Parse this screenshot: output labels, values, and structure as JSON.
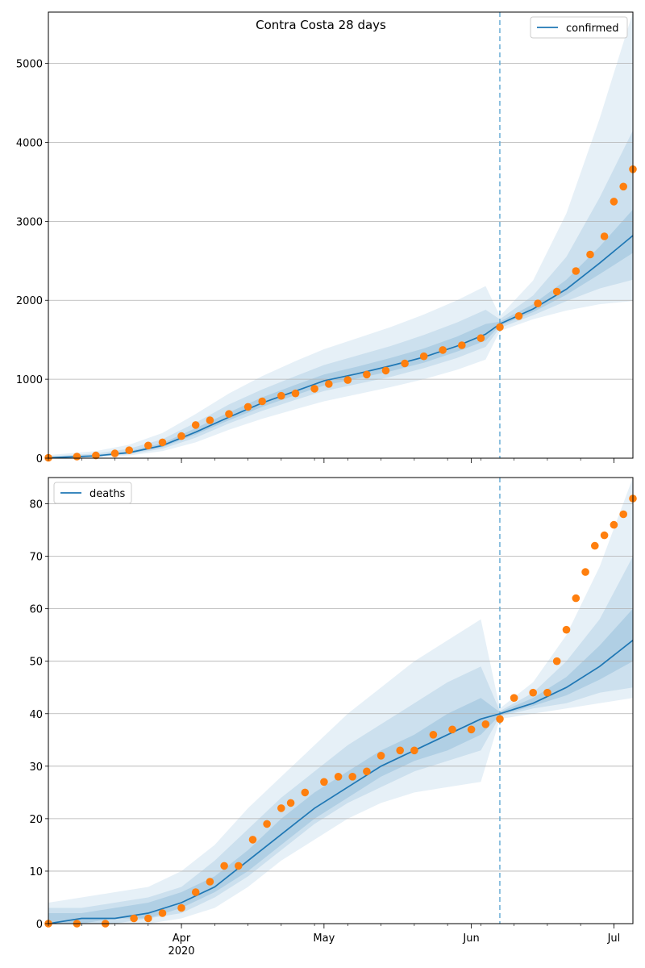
{
  "figure": {
    "title": "Contra Costa 28 days"
  },
  "x_axis": {
    "ticks": [
      {
        "date": "2020-04-01",
        "label": "Apr",
        "sublabel": "2020"
      },
      {
        "date": "2020-05-01",
        "label": "May",
        "sublabel": ""
      },
      {
        "date": "2020-06-01",
        "label": "Jun",
        "sublabel": ""
      },
      {
        "date": "2020-07-01",
        "label": "Jul",
        "sublabel": ""
      }
    ],
    "range": [
      "2020-03-04",
      "2020-07-05"
    ],
    "forecast_start": "2020-06-07"
  },
  "colors": {
    "model_line": "#1f77b4",
    "band": "#1f77b4",
    "observed": "#ff7f0e",
    "forecast_line": "#6baed6",
    "grid": "#b0b0b0"
  },
  "chart_data": [
    {
      "type": "line",
      "title": "Contra Costa 28 days",
      "legend": {
        "label": "confirmed",
        "placement": "top-right"
      },
      "ylim": [
        0,
        5650
      ],
      "yticks": [
        0,
        1000,
        2000,
        3000,
        4000,
        5000
      ],
      "grid": "horizontal",
      "model": {
        "x": [
          "2020-03-04",
          "2020-03-14",
          "2020-03-21",
          "2020-03-28",
          "2020-04-04",
          "2020-04-11",
          "2020-04-18",
          "2020-04-25",
          "2020-05-01",
          "2020-05-08",
          "2020-05-15",
          "2020-05-22",
          "2020-05-29",
          "2020-06-04",
          "2020-06-07",
          "2020-06-14",
          "2020-06-21",
          "2020-06-28",
          "2020-07-05"
        ],
        "y": [
          5,
          30,
          70,
          160,
          330,
          520,
          700,
          850,
          980,
          1070,
          1170,
          1280,
          1420,
          1570,
          1700,
          1890,
          2140,
          2470,
          2820
        ]
      },
      "bands": [
        {
          "lower": [
            0,
            10,
            35,
            90,
            200,
            360,
            500,
            620,
            720,
            810,
            900,
            1000,
            1120,
            1250,
            1610,
            1760,
            1870,
            1950,
            1990
          ],
          "upper": [
            40,
            90,
            170,
            320,
            560,
            820,
            1040,
            1230,
            1380,
            1520,
            1660,
            1820,
            2000,
            2180,
            1800,
            2250,
            3100,
            4300,
            5650
          ]
        },
        {
          "lower": [
            2,
            18,
            50,
            120,
            260,
            440,
            600,
            740,
            850,
            940,
            1030,
            1140,
            1270,
            1410,
            1650,
            1810,
            1990,
            2150,
            2260
          ],
          "upper": [
            20,
            60,
            120,
            240,
            450,
            680,
            870,
            1040,
            1180,
            1300,
            1420,
            1560,
            1720,
            1880,
            1760,
            2060,
            2550,
            3300,
            4150
          ]
        },
        {
          "lower": [
            3,
            24,
            60,
            140,
            300,
            480,
            650,
            800,
            920,
            1010,
            1100,
            1210,
            1350,
            1490,
            1680,
            1850,
            2070,
            2330,
            2600
          ],
          "upper": [
            12,
            40,
            90,
            190,
            380,
            580,
            770,
            930,
            1060,
            1160,
            1270,
            1390,
            1540,
            1700,
            1730,
            1950,
            2260,
            2680,
            3150
          ]
        }
      ],
      "observed": {
        "x": [
          "2020-03-04",
          "2020-03-10",
          "2020-03-14",
          "2020-03-18",
          "2020-03-21",
          "2020-03-25",
          "2020-03-28",
          "2020-04-01",
          "2020-04-04",
          "2020-04-07",
          "2020-04-11",
          "2020-04-15",
          "2020-04-18",
          "2020-04-22",
          "2020-04-25",
          "2020-04-29",
          "2020-05-02",
          "2020-05-06",
          "2020-05-10",
          "2020-05-14",
          "2020-05-18",
          "2020-05-22",
          "2020-05-26",
          "2020-05-30",
          "2020-06-03",
          "2020-06-07",
          "2020-06-11",
          "2020-06-15",
          "2020-06-19",
          "2020-06-23",
          "2020-06-26",
          "2020-06-29",
          "2020-07-01",
          "2020-07-03",
          "2020-07-05"
        ],
        "y": [
          5,
          20,
          35,
          60,
          100,
          160,
          200,
          280,
          420,
          480,
          560,
          650,
          720,
          790,
          820,
          880,
          940,
          990,
          1060,
          1110,
          1200,
          1290,
          1370,
          1430,
          1520,
          1660,
          1800,
          1960,
          2110,
          2370,
          2580,
          2810,
          3250,
          3440,
          3660
        ]
      }
    },
    {
      "type": "line",
      "title": "",
      "legend": {
        "label": "deaths",
        "placement": "top-left"
      },
      "ylim": [
        0,
        85
      ],
      "yticks": [
        0,
        10,
        20,
        30,
        40,
        50,
        60,
        70,
        80
      ],
      "grid": "horizontal",
      "model": {
        "x": [
          "2020-03-04",
          "2020-03-11",
          "2020-03-18",
          "2020-03-25",
          "2020-04-01",
          "2020-04-08",
          "2020-04-15",
          "2020-04-22",
          "2020-04-29",
          "2020-05-06",
          "2020-05-13",
          "2020-05-20",
          "2020-05-27",
          "2020-06-03",
          "2020-06-07",
          "2020-06-14",
          "2020-06-21",
          "2020-06-28",
          "2020-07-05"
        ],
        "y": [
          0,
          1,
          1,
          2,
          4,
          7,
          12,
          17,
          22,
          26,
          30,
          33,
          36,
          39,
          40,
          42,
          45,
          49,
          54
        ]
      },
      "bands": [
        {
          "lower": [
            0,
            0,
            0,
            0,
            1,
            3,
            7,
            12,
            16,
            20,
            23,
            25,
            26,
            27,
            39,
            40,
            41,
            42,
            43
          ],
          "upper": [
            4,
            5,
            6,
            7,
            10,
            15,
            22,
            28,
            34,
            40,
            45,
            50,
            54,
            58,
            41,
            46,
            55,
            68,
            85
          ]
        },
        {
          "lower": [
            0,
            0,
            0,
            1,
            2,
            5,
            9,
            14,
            19,
            23,
            26,
            29,
            31,
            33,
            39.5,
            41,
            42,
            44,
            45
          ],
          "upper": [
            3,
            3,
            4,
            5,
            7,
            12,
            18,
            24,
            29,
            34,
            38,
            42,
            46,
            49,
            40.5,
            44,
            50,
            58,
            70
          ]
        },
        {
          "lower": [
            0,
            0,
            1,
            1,
            3,
            6,
            10,
            15,
            20,
            24,
            28,
            31,
            33,
            36,
            39.7,
            41.5,
            43.5,
            46.5,
            50
          ],
          "upper": [
            2,
            2,
            3,
            4,
            6,
            9,
            14,
            20,
            25,
            29,
            33,
            36,
            40,
            43,
            40.3,
            43,
            47,
            53,
            60
          ]
        }
      ],
      "observed": {
        "x": [
          "2020-03-04",
          "2020-03-10",
          "2020-03-16",
          "2020-03-22",
          "2020-03-25",
          "2020-03-28",
          "2020-04-01",
          "2020-04-04",
          "2020-04-07",
          "2020-04-10",
          "2020-04-13",
          "2020-04-16",
          "2020-04-19",
          "2020-04-22",
          "2020-04-24",
          "2020-04-27",
          "2020-05-01",
          "2020-05-04",
          "2020-05-07",
          "2020-05-10",
          "2020-05-13",
          "2020-05-17",
          "2020-05-20",
          "2020-05-24",
          "2020-05-28",
          "2020-06-01",
          "2020-06-04",
          "2020-06-07",
          "2020-06-10",
          "2020-06-14",
          "2020-06-17",
          "2020-06-19",
          "2020-06-21",
          "2020-06-23",
          "2020-06-25",
          "2020-06-27",
          "2020-06-29",
          "2020-07-01",
          "2020-07-03",
          "2020-07-05"
        ],
        "y": [
          0,
          0,
          0,
          1,
          1,
          2,
          3,
          6,
          8,
          11,
          11,
          16,
          19,
          22,
          23,
          25,
          27,
          28,
          28,
          29,
          32,
          33,
          33,
          36,
          37,
          37,
          38,
          39,
          43,
          44,
          44,
          50,
          56,
          62,
          67,
          72,
          74,
          76,
          78,
          81
        ]
      }
    }
  ]
}
